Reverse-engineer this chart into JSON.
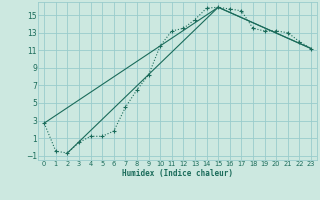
{
  "xlabel": "Humidex (Indice chaleur)",
  "background_color": "#cce8e0",
  "grid_color": "#99cccc",
  "line_color": "#1a6b5a",
  "xlim": [
    -0.5,
    23.5
  ],
  "ylim": [
    -1.5,
    16.5
  ],
  "xticks": [
    0,
    1,
    2,
    3,
    4,
    5,
    6,
    7,
    8,
    9,
    10,
    11,
    12,
    13,
    14,
    15,
    16,
    17,
    18,
    19,
    20,
    21,
    22,
    23
  ],
  "yticks": [
    -1,
    1,
    3,
    5,
    7,
    9,
    11,
    13,
    15
  ],
  "series0_x": [
    0,
    1,
    2,
    3,
    4,
    5,
    6,
    7,
    8,
    9,
    10,
    11,
    12,
    13,
    14,
    15,
    16,
    17,
    18,
    19,
    20,
    21,
    22,
    23
  ],
  "series0_y": [
    2.7,
    -0.5,
    -0.7,
    0.5,
    1.2,
    1.2,
    1.8,
    4.5,
    6.5,
    8.2,
    11.5,
    13.2,
    13.5,
    14.5,
    15.8,
    15.9,
    15.7,
    15.5,
    13.5,
    13.2,
    13.2,
    13.0,
    12.0,
    11.2
  ],
  "series1_x": [
    0,
    15,
    23
  ],
  "series1_y": [
    2.7,
    15.9,
    11.2
  ],
  "series2_x": [
    2,
    15,
    23
  ],
  "series2_y": [
    -0.7,
    15.9,
    11.2
  ]
}
